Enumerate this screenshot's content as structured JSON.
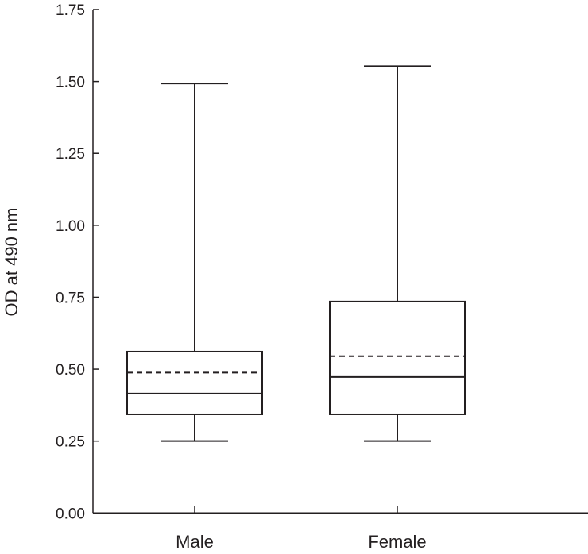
{
  "chart_data": {
    "type": "box",
    "title": "",
    "xlabel": "",
    "ylabel": "OD at 490 nm",
    "ylim": [
      0,
      1.75
    ],
    "yticks": [
      "0.00",
      "0.25",
      "0.50",
      "0.75",
      "1.00",
      "1.25",
      "1.50",
      "1.75"
    ],
    "categories": [
      "Male",
      "Female"
    ],
    "boxes": [
      {
        "category": "Male",
        "whisker_low": 0.25,
        "q1": 0.343,
        "median": 0.415,
        "mean": 0.488,
        "q3": 0.561,
        "whisker_high": 1.493
      },
      {
        "category": "Female",
        "whisker_low": 0.25,
        "q1": 0.343,
        "median": 0.473,
        "mean": 0.545,
        "q3": 0.735,
        "whisker_high": 1.553
      }
    ],
    "legend": "none",
    "grid": false,
    "mean_line_style": "dashed",
    "median_line_style": "solid",
    "line_color": "#231f20"
  }
}
